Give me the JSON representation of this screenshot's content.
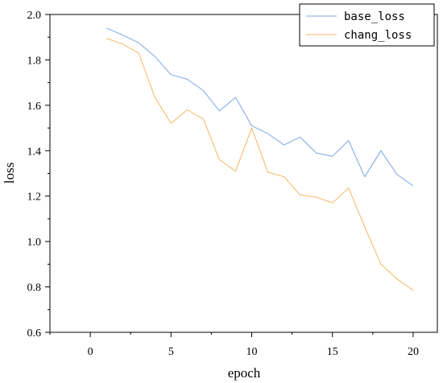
{
  "colors": {
    "base_loss": "#7aa6e6",
    "chang_loss": "#f5b662",
    "axis": "#000000",
    "background": "#ffffff"
  },
  "chart_data": {
    "type": "line",
    "title": "",
    "xlabel": "epoch",
    "ylabel": "loss",
    "xlim": [
      -2.5,
      21.5
    ],
    "ylim": [
      0.6,
      2.0
    ],
    "x_ticks": [
      0,
      5,
      10,
      15,
      20
    ],
    "x_tick_labels": [
      "0",
      "5",
      "10",
      "15",
      "20"
    ],
    "y_ticks": [
      0.6,
      0.8,
      1.0,
      1.2,
      1.4,
      1.6,
      1.8,
      2.0
    ],
    "y_tick_labels": [
      "0.6",
      "0.8",
      "1.0",
      "1.2",
      "1.4",
      "1.6",
      "1.8",
      "2.0"
    ],
    "grid": false,
    "legend_position": "top-right",
    "x": [
      1,
      2,
      3,
      4,
      5,
      6,
      7,
      8,
      9,
      10,
      11,
      12,
      13,
      14,
      15,
      16,
      17,
      18,
      19,
      20
    ],
    "series": [
      {
        "name": "base_loss",
        "color": "#7aa6e6",
        "values": [
          1.94,
          1.91,
          1.875,
          1.815,
          1.735,
          1.715,
          1.665,
          1.575,
          1.635,
          1.51,
          1.475,
          1.425,
          1.46,
          1.39,
          1.375,
          1.445,
          1.285,
          1.4,
          1.295,
          1.245
        ]
      },
      {
        "name": "chang_loss",
        "color": "#f5b662",
        "values": [
          1.895,
          1.87,
          1.83,
          1.635,
          1.52,
          1.58,
          1.54,
          1.36,
          1.31,
          1.5,
          1.305,
          1.285,
          1.205,
          1.195,
          1.17,
          1.235,
          1.065,
          0.9,
          0.835,
          0.785
        ]
      }
    ]
  }
}
